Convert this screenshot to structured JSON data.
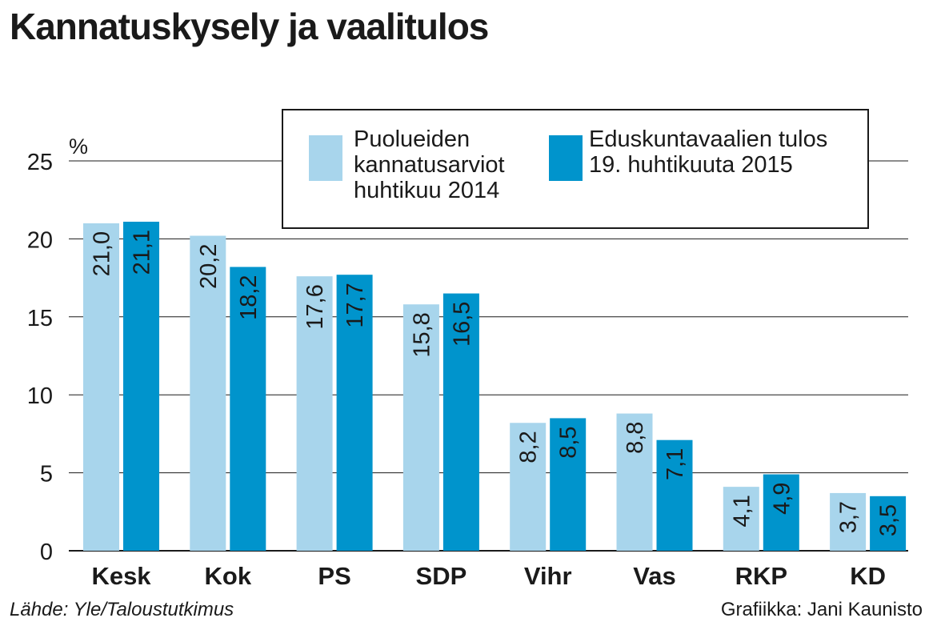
{
  "title": "Kannatuskysely ja vaalitulos",
  "legend": {
    "items": [
      {
        "lines": [
          "Puolueiden",
          "kannatusarviot",
          "huhtikuu 2014"
        ],
        "color": "#a8d5ec"
      },
      {
        "lines": [
          "Eduskuntavaalien tulos",
          "19. huhtikuuta 2015"
        ],
        "color": "#0094cc"
      }
    ]
  },
  "source": "Lähde: Yle/Taloustutkimus",
  "credit": "Grafiikka: Jani Kaunisto",
  "chart_data": {
    "type": "bar",
    "title": "Kannatuskysely ja vaalitulos",
    "ylabel": "%",
    "xlabel": "",
    "ylim": [
      0,
      25
    ],
    "yticks": [
      0,
      5,
      10,
      15,
      20,
      25
    ],
    "ytick_labels": [
      "0",
      "5",
      "10",
      "15",
      "20",
      "25"
    ],
    "grid": true,
    "legend_position": "top-right",
    "categories": [
      "Kesk",
      "Kok",
      "PS",
      "SDP",
      "Vihr",
      "Vas",
      "RKP",
      "KD"
    ],
    "series": [
      {
        "name": "Puolueiden kannatusarviot huhtikuu 2014",
        "color": "#a8d5ec",
        "values": [
          21.0,
          20.2,
          17.6,
          15.8,
          8.2,
          8.8,
          4.1,
          3.7
        ],
        "labels": [
          "21,0",
          "20,2",
          "17,6",
          "15,8",
          "8,2",
          "8,8",
          "4,1",
          "3,7"
        ]
      },
      {
        "name": "Eduskuntavaalien tulos 19. huhtikuuta 2015",
        "color": "#0094cc",
        "values": [
          21.1,
          18.2,
          17.7,
          16.5,
          8.5,
          7.1,
          4.9,
          3.5
        ],
        "labels": [
          "21,1",
          "18,2",
          "17,7",
          "16,5",
          "8,5",
          "7,1",
          "4,9",
          "3,5"
        ]
      }
    ]
  }
}
